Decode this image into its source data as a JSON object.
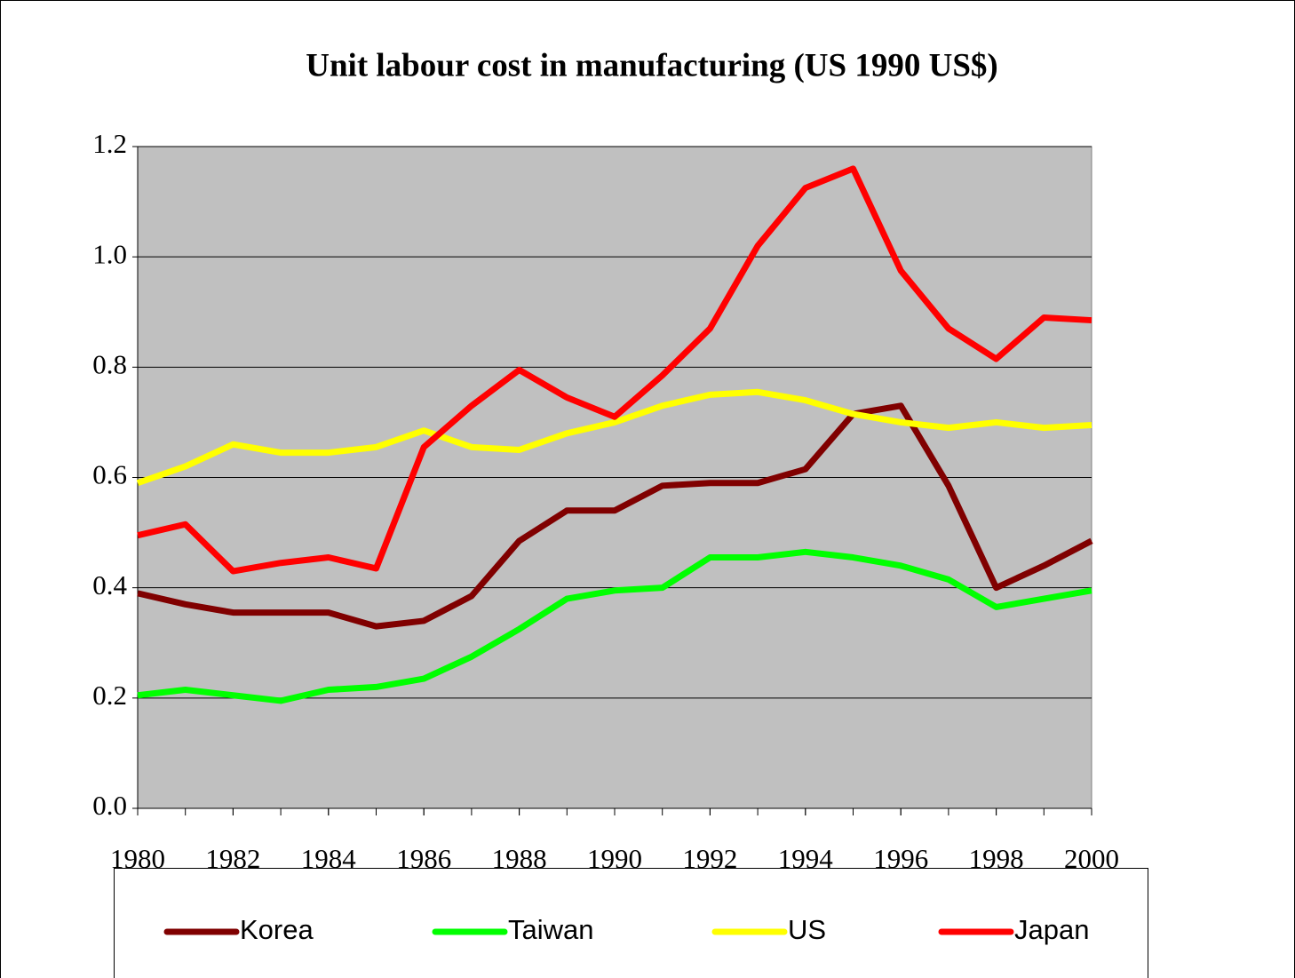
{
  "chart_data": {
    "type": "line",
    "title": "Unit labour cost in manufacturing (US 1990 US$)",
    "x": [
      1980,
      1981,
      1982,
      1983,
      1984,
      1985,
      1986,
      1987,
      1988,
      1989,
      1990,
      1991,
      1992,
      1993,
      1994,
      1995,
      1996,
      1997,
      1998,
      1999,
      2000
    ],
    "xlim": [
      1980,
      2000
    ],
    "xticks": [
      1980,
      1982,
      1984,
      1986,
      1988,
      1990,
      1992,
      1994,
      1996,
      1998,
      2000
    ],
    "ylim": [
      0,
      1.2
    ],
    "yticks": [
      {
        "value": 0,
        "label": "0.0"
      },
      0.2,
      0.4,
      0.6,
      0.8,
      {
        "value": 1,
        "label": "1.0"
      },
      1.2
    ],
    "grid": true,
    "legend": "bottom",
    "series": [
      {
        "name": "Korea",
        "color": "#800000",
        "values": [
          0.39,
          0.37,
          0.355,
          0.355,
          0.355,
          0.33,
          0.34,
          0.385,
          0.485,
          0.54,
          0.54,
          0.585,
          0.59,
          0.59,
          0.615,
          0.715,
          0.73,
          0.585,
          0.4,
          0.44,
          0.485
        ]
      },
      {
        "name": "Taiwan",
        "color": "#00ff00",
        "values": [
          0.205,
          0.215,
          0.205,
          0.195,
          0.215,
          0.22,
          0.235,
          0.275,
          0.325,
          0.38,
          0.395,
          0.4,
          0.455,
          0.455,
          0.465,
          0.455,
          0.44,
          0.415,
          0.365,
          0.38,
          0.395
        ]
      },
      {
        "name": "US",
        "color": "#ffff00",
        "values": [
          0.59,
          0.62,
          0.66,
          0.645,
          0.645,
          0.655,
          0.685,
          0.655,
          0.65,
          0.68,
          0.7,
          0.73,
          0.75,
          0.755,
          0.74,
          0.715,
          0.7,
          0.69,
          0.7,
          0.69,
          0.695
        ]
      },
      {
        "name": "Japan",
        "color": "#ff0000",
        "values": [
          0.495,
          0.515,
          0.43,
          0.445,
          0.455,
          0.435,
          0.655,
          0.73,
          0.795,
          0.745,
          0.71,
          0.785,
          0.87,
          1.02,
          1.125,
          1.16,
          0.975,
          0.87,
          0.815,
          0.89,
          0.885
        ]
      }
    ]
  }
}
